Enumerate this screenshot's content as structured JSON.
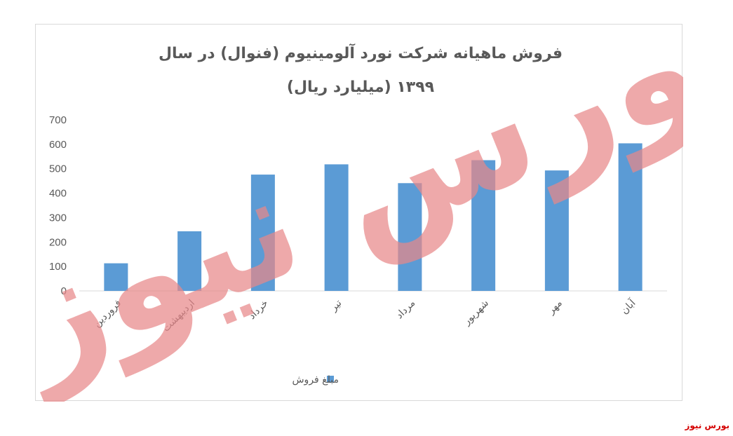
{
  "chart_data": {
    "type": "bar",
    "title_line1": "فروش ماهیانه شرکت نورد آلومینیوم (فنوال) در سال",
    "title_line2": "۱۳۹۹ (میلیارد ریال)",
    "categories": [
      "فروردین",
      "اردیبهشت",
      "خرداد",
      "تیر",
      "مرداد",
      "شهریور",
      "مهر",
      "آبان"
    ],
    "series": [
      {
        "name": "مبلغ فروش",
        "values": [
          113,
          244,
          476,
          518,
          441,
          535,
          493,
          604
        ]
      }
    ],
    "ylim": [
      0,
      700
    ],
    "yticks": [
      0,
      100,
      200,
      300,
      400,
      500,
      600,
      700
    ],
    "grid": false,
    "legend_position": "bottom",
    "bar_color": "#5b9bd5"
  },
  "watermark": {
    "text": "بورس نیوز",
    "color": "#e8888a"
  },
  "logo": {
    "text": "بورس نیوز",
    "color": "#d40000"
  }
}
